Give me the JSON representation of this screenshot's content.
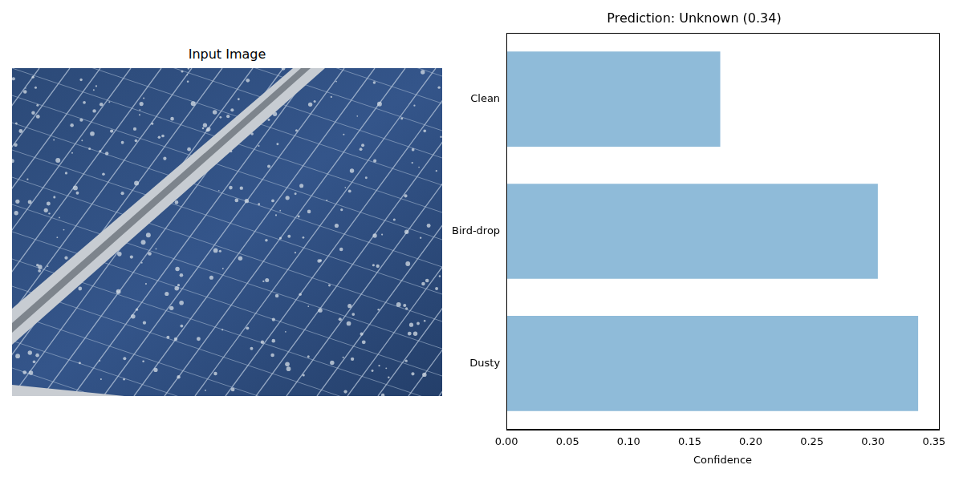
{
  "image": {
    "title": "Input Image"
  },
  "chart_data": {
    "type": "bar",
    "orientation": "horizontal",
    "title": "Prediction: Unknown (0.34)",
    "categories": [
      "Clean",
      "Bird-drop",
      "Dusty"
    ],
    "values": [
      0.175,
      0.304,
      0.337
    ],
    "color": "#8fbbd9",
    "x_label": "Confidence",
    "xlim": [
      0,
      0.354
    ],
    "xticks": [
      {
        "value": 0,
        "label": "0.00"
      },
      {
        "value": 0.05,
        "label": "0.05"
      },
      {
        "value": 0.1,
        "label": "0.10"
      },
      {
        "value": 0.15,
        "label": "0.15"
      },
      {
        "value": 0.2,
        "label": "0.20"
      },
      {
        "value": 0.25,
        "label": "0.25"
      },
      {
        "value": 0.3,
        "label": "0.30"
      },
      {
        "value": 0.35,
        "label": "0.35"
      }
    ],
    "grid": false
  }
}
